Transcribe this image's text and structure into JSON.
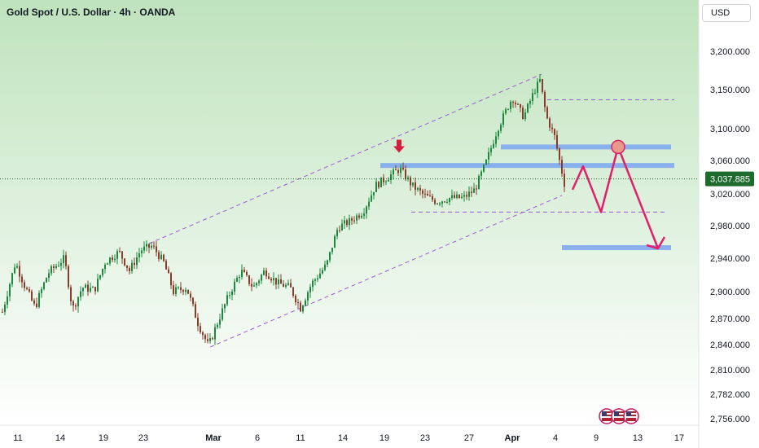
{
  "header": {
    "title": "Gold Spot / U.S. Dollar · 4h · OANDA",
    "currency_label": "USD"
  },
  "colors": {
    "bg_top": "#bfe3bd",
    "bg_bottom": "#ffffff",
    "candle_up": "#1b8a3c",
    "candle_down": "#8c3a2a",
    "channel_line": "#9c5cd6",
    "zone": "#7fa8f0",
    "projection": "#e0206a",
    "arrow": "#d61f3c",
    "circle": "#e89a8a",
    "price_tag": "#1e6b2e"
  },
  "icons": [
    "us-flag-icon",
    "us-flag-icon",
    "us-flag-icon"
  ],
  "chart_data": {
    "type": "candlestick",
    "title": "Gold Spot / U.S. Dollar · 4h · OANDA",
    "y_axis": {
      "ticks": [
        "3,200.000",
        "3,150.000",
        "3,100.000",
        "3,060.000",
        "3,020.000",
        "2,980.000",
        "2,940.000",
        "2,900.000",
        "2,870.000",
        "2,840.000",
        "2,810.000",
        "2,782.000",
        "2,756.000"
      ],
      "tick_values": [
        3200,
        3150,
        3100,
        3060,
        3020,
        2980,
        2940,
        2900,
        2870,
        2840,
        2810,
        2782,
        2756
      ],
      "range": [
        2748,
        3232
      ]
    },
    "x_axis": {
      "ticks": [
        "11",
        "14",
        "19",
        "23",
        "Mar",
        "6",
        "11",
        "14",
        "19",
        "23",
        "27",
        "Apr",
        "4",
        "9",
        "13",
        "17"
      ],
      "bold_ticks": [
        "Mar",
        "Apr"
      ]
    },
    "current_price": {
      "label": "3,037.885",
      "value": 3037.885
    },
    "price_path": [
      [
        0,
        2870
      ],
      [
        18,
        2935
      ],
      [
        30,
        2905
      ],
      [
        42,
        2882
      ],
      [
        58,
        2922
      ],
      [
        78,
        2940
      ],
      [
        88,
        2880
      ],
      [
        100,
        2905
      ],
      [
        115,
        2902
      ],
      [
        128,
        2935
      ],
      [
        145,
        2948
      ],
      [
        158,
        2925
      ],
      [
        172,
        2950
      ],
      [
        186,
        2955
      ],
      [
        200,
        2935
      ],
      [
        212,
        2900
      ],
      [
        228,
        2905
      ],
      [
        242,
        2865
      ],
      [
        255,
        2838
      ],
      [
        268,
        2870
      ],
      [
        282,
        2900
      ],
      [
        295,
        2925
      ],
      [
        310,
        2905
      ],
      [
        324,
        2925
      ],
      [
        340,
        2910
      ],
      [
        355,
        2905
      ],
      [
        368,
        2882
      ],
      [
        382,
        2910
      ],
      [
        400,
        2932
      ],
      [
        414,
        2978
      ],
      [
        428,
        2985
      ],
      [
        445,
        2998
      ],
      [
        460,
        3030
      ],
      [
        475,
        3040
      ],
      [
        490,
        3050
      ],
      [
        505,
        3030
      ],
      [
        520,
        3018
      ],
      [
        535,
        3010
      ],
      [
        552,
        3015
      ],
      [
        568,
        3015
      ],
      [
        582,
        3025
      ],
      [
        596,
        3058
      ],
      [
        610,
        3100
      ],
      [
        628,
        3140
      ],
      [
        642,
        3115
      ],
      [
        655,
        3148
      ],
      [
        662,
        3162
      ],
      [
        670,
        3115
      ],
      [
        680,
        3090
      ],
      [
        686,
        3060
      ],
      [
        693,
        3028
      ]
    ],
    "channel": {
      "upper": [
        [
          183,
          2958
        ],
        [
          665,
          3170
        ]
      ],
      "lower": [
        [
          258,
          2837
        ],
        [
          690,
          3018
        ]
      ]
    },
    "dashed_levels": [
      {
        "from": 672,
        "to": 828,
        "value": 3137
      },
      {
        "from": 505,
        "to": 818,
        "value": 2997
      }
    ],
    "zones": [
      {
        "from": 615,
        "to": 824,
        "value": 3077
      },
      {
        "from": 467,
        "to": 828,
        "value": 3054
      },
      {
        "from": 690,
        "to": 824,
        "value": 2953
      }
    ],
    "projection": [
      [
        703,
        3025
      ],
      [
        716,
        3053
      ],
      [
        738,
        2997
      ],
      [
        759,
        3077
      ],
      [
        808,
        2952
      ]
    ],
    "marker_down": {
      "x": 490,
      "value": 3078
    },
    "marker_circle": {
      "x": 759,
      "value": 3077
    }
  }
}
